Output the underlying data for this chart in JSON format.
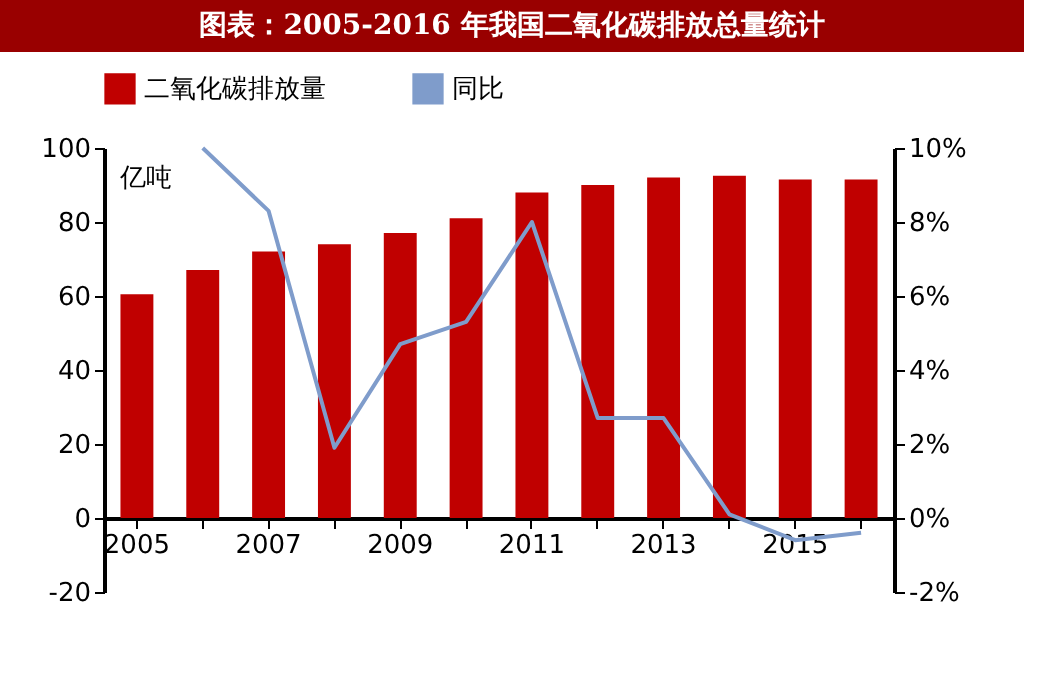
{
  "chart_data": {
    "type": "bar",
    "title": "图表：2005-2016 年我国二氧化碳排放总量统计",
    "ylabel": "亿吨",
    "categories": [
      "2005",
      null,
      "2007",
      null,
      "2009",
      null,
      "2011",
      null,
      "2013",
      null,
      "2015",
      null
    ],
    "series": [
      {
        "name": "二氧化碳排放量",
        "color": "#c00000",
        "values": [
          60.5,
          67,
          72,
          74,
          77,
          81,
          88,
          90,
          92,
          92.5,
          91.5,
          91.5
        ]
      },
      {
        "name": "同比",
        "type": "line",
        "axis": "y2",
        "color": "#7f9ccb",
        "values": [
          null,
          10,
          8.3,
          1.9,
          4.7,
          5.3,
          8,
          2.7,
          2.7,
          0.1,
          -0.6,
          -0.4
        ]
      }
    ],
    "ylim": [
      -20,
      100
    ],
    "yticks": [
      -20,
      0,
      20,
      40,
      60,
      80,
      100
    ],
    "y2lim": [
      -2,
      10
    ],
    "y2ticks": [
      {
        "value": -2,
        "label": "-2%"
      },
      {
        "value": 0,
        "label": "0%"
      },
      {
        "value": 2,
        "label": "2%"
      },
      {
        "value": 4,
        "label": "4%"
      },
      {
        "value": 6,
        "label": "6%"
      },
      {
        "value": 8,
        "label": "8%"
      },
      {
        "value": 10,
        "label": "10%"
      }
    ],
    "legend": "top",
    "grid": false
  }
}
